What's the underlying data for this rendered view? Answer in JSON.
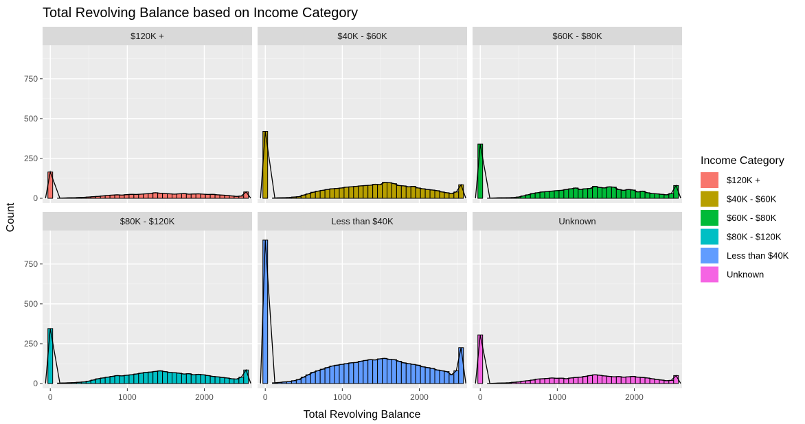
{
  "chart_data": {
    "type": "bar",
    "title": "Total Revolving Balance based on Income Category",
    "xlabel": "Total Revolving Balance",
    "ylabel": "Count",
    "xlim": [
      -100,
      2620
    ],
    "ylim": [
      -30,
      960
    ],
    "x_ticks": [
      0,
      1000,
      2000
    ],
    "y_ticks": [
      0,
      250,
      500,
      750
    ],
    "bin_width": 62,
    "grid": true,
    "legend": {
      "title": "Income Category",
      "position": "right"
    },
    "bins_x": [
      0,
      124,
      186,
      248,
      310,
      372,
      434,
      496,
      558,
      620,
      682,
      744,
      806,
      868,
      930,
      992,
      1054,
      1116,
      1178,
      1240,
      1302,
      1364,
      1426,
      1488,
      1550,
      1612,
      1674,
      1736,
      1798,
      1860,
      1922,
      1984,
      2046,
      2108,
      2170,
      2232,
      2294,
      2356,
      2418,
      2480,
      2542
    ],
    "series": [
      {
        "name": "$120K +",
        "color": "#F8766D",
        "values": [
          165,
          1,
          2,
          3,
          3,
          5,
          6,
          8,
          10,
          12,
          15,
          18,
          20,
          22,
          20,
          23,
          25,
          24,
          26,
          28,
          30,
          35,
          32,
          30,
          28,
          26,
          28,
          30,
          26,
          27,
          28,
          26,
          24,
          25,
          22,
          20,
          18,
          15,
          12,
          14,
          40
        ]
      },
      {
        "name": "$40K - $60K",
        "color": "#B79F00",
        "values": [
          420,
          2,
          3,
          4,
          5,
          8,
          10,
          20,
          28,
          38,
          45,
          50,
          55,
          60,
          62,
          65,
          70,
          72,
          75,
          78,
          80,
          82,
          88,
          86,
          100,
          98,
          92,
          80,
          78,
          72,
          75,
          65,
          60,
          55,
          52,
          48,
          40,
          35,
          30,
          40,
          85
        ]
      },
      {
        "name": "$60K - $80K",
        "color": "#00BA38",
        "values": [
          340,
          1,
          2,
          3,
          3,
          4,
          5,
          8,
          15,
          22,
          30,
          35,
          40,
          42,
          45,
          48,
          50,
          55,
          60,
          65,
          55,
          60,
          62,
          75,
          68,
          65,
          72,
          70,
          55,
          50,
          55,
          52,
          40,
          45,
          35,
          30,
          28,
          25,
          22,
          30,
          80
        ]
      },
      {
        "name": "$80K - $120K",
        "color": "#00BFC4",
        "values": [
          345,
          3,
          4,
          5,
          6,
          8,
          10,
          15,
          22,
          30,
          35,
          40,
          45,
          50,
          48,
          52,
          55,
          60,
          65,
          70,
          72,
          76,
          80,
          75,
          70,
          68,
          65,
          60,
          62,
          55,
          58,
          55,
          50,
          45,
          42,
          38,
          35,
          30,
          28,
          40,
          85
        ]
      },
      {
        "name": "Less than $40K",
        "color": "#619CFF",
        "values": [
          900,
          5,
          7,
          10,
          12,
          18,
          25,
          40,
          55,
          70,
          80,
          90,
          100,
          110,
          115,
          120,
          125,
          130,
          132,
          140,
          145,
          150,
          148,
          155,
          158,
          152,
          150,
          140,
          130,
          125,
          120,
          115,
          105,
          100,
          95,
          85,
          80,
          75,
          55,
          80,
          225
        ]
      },
      {
        "name": "Unknown",
        "color": "#F564E3",
        "values": [
          305,
          1,
          2,
          3,
          4,
          5,
          8,
          10,
          15,
          18,
          22,
          28,
          30,
          32,
          35,
          33,
          34,
          30,
          35,
          38,
          40,
          45,
          50,
          55,
          52,
          48,
          45,
          42,
          44,
          40,
          42,
          45,
          40,
          38,
          35,
          30,
          25,
          22,
          18,
          20,
          50
        ]
      }
    ]
  }
}
